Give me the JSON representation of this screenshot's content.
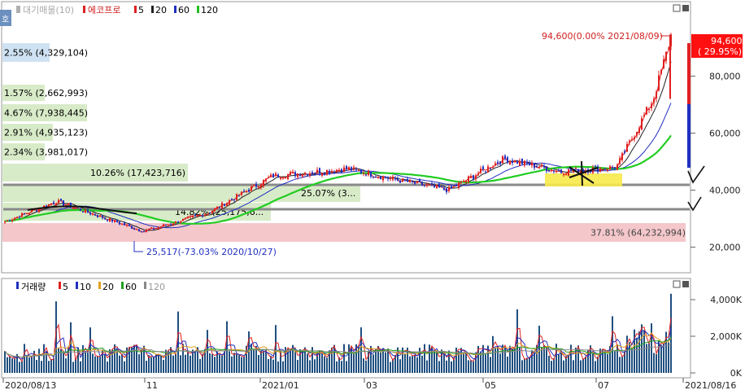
{
  "header": {
    "side_tab_label": "호",
    "legend_title": "대기매물(10)",
    "price_legend_name": "에코프로",
    "ma_labels": [
      {
        "text": "5",
        "color": "#e02020"
      },
      {
        "text": "20",
        "color": "#222222"
      },
      {
        "text": "60",
        "color": "#2030c0"
      },
      {
        "text": "120",
        "color": "#20c020"
      }
    ]
  },
  "price_panel": {
    "current_price_label": "94,600",
    "current_change_label": "( 29.95%)",
    "max_annotation": "94,600(0.00% 2021/08/09)",
    "min_annotation": "25,517(-73.03% 2020/10/27)",
    "y_ticks": [
      "80,000",
      "60,000",
      "40,000",
      "20,000"
    ],
    "volume_profile": [
      {
        "label": "2.55% (4,329,104)",
        "color": "#cfe2f3"
      },
      {
        "label": "1.57% (2,662,993)",
        "color": "#d8ebc8"
      },
      {
        "label": "4.67% (7,938,445)",
        "color": "#d8ebc8"
      },
      {
        "label": "2.91% (4,935,123)",
        "color": "#d8ebc8"
      },
      {
        "label": "2.34% (3,981,017)",
        "color": "#d8ebc8"
      },
      {
        "label": "10.26% (17,423,716)",
        "color": "#d8ebc8"
      },
      {
        "label": "25.07% (3...",
        "color": "#d8ebc8"
      },
      {
        "label": "14.82% (25,175,6...",
        "color": "#d8ebc8"
      },
      {
        "label": "37.81% (64,232,994)",
        "color": "#f4c7cb"
      }
    ]
  },
  "volume_panel": {
    "title": "거래량",
    "ma_labels": [
      {
        "text": "5",
        "color": "#e02020"
      },
      {
        "text": "10",
        "color": "#2030c0"
      },
      {
        "text": "20",
        "color": "#e0a020"
      },
      {
        "text": "60",
        "color": "#20a020"
      },
      {
        "text": "120",
        "color": "#888888"
      }
    ],
    "y_ticks": [
      "4,000K",
      "2,000K",
      "0K"
    ]
  },
  "x_axis": {
    "labels": [
      "2020/08/13",
      "11",
      "2021/01",
      "03",
      "05",
      "07",
      "2021/08/16"
    ]
  },
  "chart_data": {
    "type": "candlestick",
    "ticker": "에코프로",
    "y_ticks": [
      20000,
      40000,
      60000,
      80000
    ],
    "price_range": [
      25517,
      94600
    ],
    "time_range": [
      "2020/08/13",
      "2021/08/16"
    ],
    "close_series_approx": [
      {
        "date": "2020/08/13",
        "close": 29000
      },
      {
        "date": "2020/09/10",
        "close": 36000
      },
      {
        "date": "2020/10/27",
        "close": 25517
      },
      {
        "date": "2020/12/01",
        "close": 32000
      },
      {
        "date": "2021/01/05",
        "close": 45000
      },
      {
        "date": "2021/02/15",
        "close": 47500
      },
      {
        "date": "2021/03/10",
        "close": 44000
      },
      {
        "date": "2021/04/10",
        "close": 40000
      },
      {
        "date": "2021/05/10",
        "close": 51000
      },
      {
        "date": "2021/06/10",
        "close": 46500
      },
      {
        "date": "2021/07/10",
        "close": 48000
      },
      {
        "date": "2021/07/30",
        "close": 72000
      },
      {
        "date": "2021/08/09",
        "close": 94600
      }
    ],
    "moving_averages": [
      "5",
      "20",
      "60",
      "120"
    ],
    "volume_max_tick": 4000000
  },
  "colors": {
    "up": "#e02020",
    "down": "#2030c0",
    "ma120": "#22cc22",
    "support_line": "#888888",
    "highlight": "#f7e94a"
  }
}
